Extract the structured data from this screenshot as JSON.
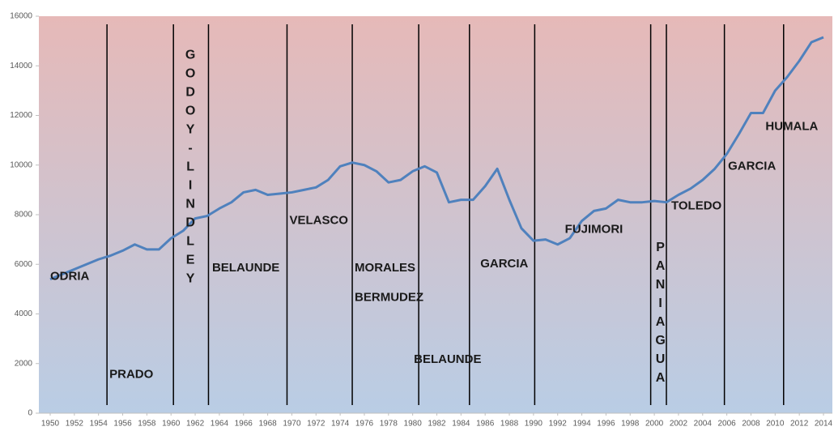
{
  "chart_data": {
    "type": "line",
    "x": [
      1950,
      1951,
      1952,
      1953,
      1954,
      1955,
      1956,
      1957,
      1958,
      1959,
      1960,
      1961,
      1962,
      1963,
      1964,
      1965,
      1966,
      1967,
      1968,
      1969,
      1970,
      1971,
      1972,
      1973,
      1974,
      1975,
      1976,
      1977,
      1978,
      1979,
      1980,
      1981,
      1982,
      1983,
      1984,
      1985,
      1986,
      1987,
      1988,
      1989,
      1990,
      1991,
      1992,
      1993,
      1994,
      1995,
      1996,
      1997,
      1998,
      1999,
      2000,
      2001,
      2002,
      2003,
      2004,
      2005,
      2006,
      2007,
      2008,
      2009,
      2010,
      2011,
      2012,
      2013,
      2014
    ],
    "series": [
      {
        "color": "#4f81bd",
        "values": [
          5400,
          5600,
          5800,
          6000,
          6200,
          6350,
          6550,
          6800,
          6600,
          6600,
          7050,
          7350,
          7850,
          7950,
          8250,
          8500,
          8900,
          9000,
          8800,
          8850,
          8900,
          9000,
          9100,
          9400,
          9950,
          10100,
          10000,
          9750,
          9300,
          9400,
          9750,
          9950,
          9700,
          8500,
          8600,
          8600,
          9150,
          9850,
          8600,
          7450,
          6950,
          7000,
          6800,
          7050,
          7750,
          8150,
          8250,
          8600,
          8500,
          8500,
          8550,
          8500,
          8800,
          9050,
          9400,
          9850,
          10450,
          11250,
          12100,
          12100,
          13000,
          13550,
          14200,
          14950,
          15150
        ]
      }
    ],
    "xlim": [
      1950,
      2014
    ],
    "xticks": [
      1950,
      1952,
      1954,
      1956,
      1958,
      1960,
      1962,
      1964,
      1966,
      1968,
      1970,
      1972,
      1974,
      1976,
      1978,
      1980,
      1982,
      1984,
      1986,
      1988,
      1990,
      1992,
      1994,
      1996,
      1998,
      2000,
      2002,
      2004,
      2006,
      2008,
      2010,
      2012,
      2014
    ],
    "ylim": [
      0,
      16000
    ],
    "yticks": [
      0,
      2000,
      4000,
      6000,
      8000,
      10000,
      12000,
      14000,
      16000
    ],
    "markers": [
      1954.7,
      1960.2,
      1963.1,
      1969.6,
      1975,
      1980.5,
      1984.7,
      1990.1,
      1999.7,
      2001,
      2005.8,
      2010.7
    ],
    "annotations": [
      {
        "text": "ODRIA",
        "x": 1950,
        "y": 5500
      },
      {
        "text": "PRADO",
        "x": 1954.9,
        "y": 1550
      },
      {
        "text": "GODOY-LINDLEY",
        "x": 1961.6,
        "y": 14450,
        "vertical": true
      },
      {
        "text": "BELAUNDE",
        "x": 1963.4,
        "y": 5850
      },
      {
        "text": "VELASCO",
        "x": 1969.8,
        "y": 7750
      },
      {
        "text": "MORALES",
        "x": 1975.2,
        "y": 5850
      },
      {
        "text": "BERMUDEZ",
        "x": 1975.2,
        "y": 4650
      },
      {
        "text": "BELAUNDE",
        "x": 1980.1,
        "y": 2150
      },
      {
        "text": "GARCIA",
        "x": 1985.6,
        "y": 6000
      },
      {
        "text": "FUJIMORI",
        "x": 1992.6,
        "y": 7400
      },
      {
        "text": "PANIAGUA",
        "x": 2000.5,
        "y": 6700,
        "vertical": true
      },
      {
        "text": "TOLEDO",
        "x": 2001.4,
        "y": 8350
      },
      {
        "text": "GARCIA",
        "x": 2006.1,
        "y": 9950
      },
      {
        "text": "HUMALA",
        "x": 2009.2,
        "y": 11550
      }
    ]
  }
}
